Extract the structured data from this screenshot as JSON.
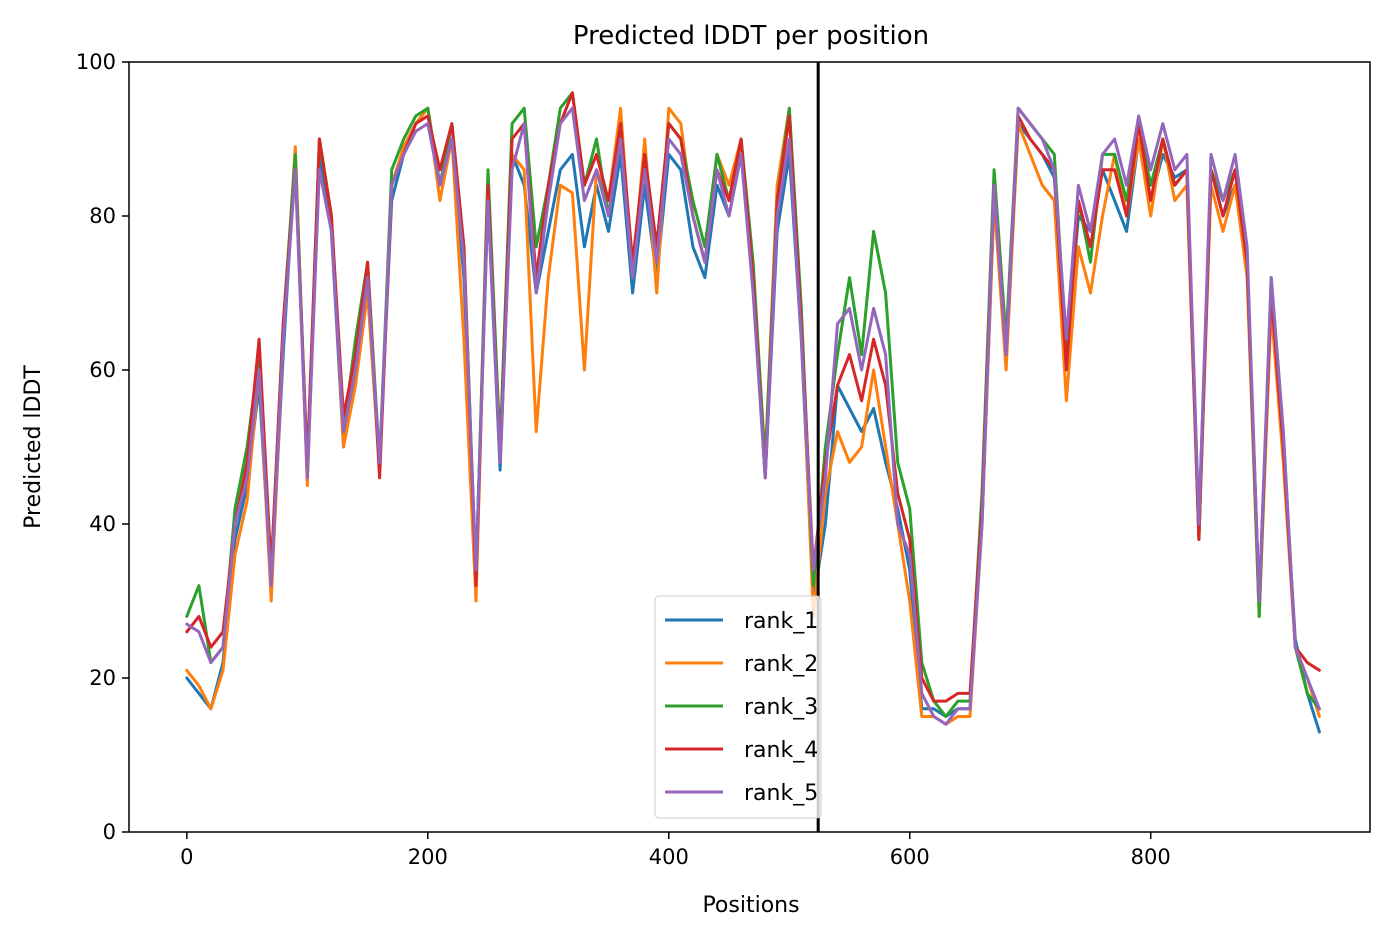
{
  "chart_data": {
    "type": "line",
    "title": "Predicted lDDT per position",
    "xlabel": "Positions",
    "ylabel": "Predicted lDDT",
    "xlim": [
      -48,
      982
    ],
    "ylim": [
      0,
      100
    ],
    "xticks": [
      0,
      200,
      400,
      600,
      800
    ],
    "yticks": [
      0,
      20,
      40,
      60,
      80,
      100
    ],
    "grid": false,
    "legend_position": "lower center",
    "chain_break": 524,
    "x": [
      0,
      10,
      20,
      30,
      40,
      50,
      60,
      70,
      80,
      90,
      100,
      110,
      120,
      130,
      140,
      150,
      160,
      170,
      180,
      190,
      200,
      210,
      220,
      230,
      240,
      250,
      260,
      270,
      280,
      290,
      300,
      310,
      320,
      330,
      340,
      350,
      360,
      370,
      380,
      390,
      400,
      410,
      420,
      430,
      440,
      450,
      460,
      470,
      480,
      490,
      500,
      510,
      520,
      530,
      540,
      550,
      560,
      570,
      580,
      590,
      600,
      610,
      620,
      630,
      640,
      650,
      660,
      670,
      680,
      690,
      700,
      710,
      720,
      730,
      740,
      750,
      760,
      770,
      780,
      790,
      800,
      810,
      820,
      830,
      840,
      850,
      860,
      870,
      880,
      890,
      900,
      910,
      920,
      930,
      940
    ],
    "series": [
      {
        "name": "rank_1",
        "color": "#1f77b4",
        "values": [
          20,
          18,
          16,
          22,
          38,
          45,
          58,
          32,
          62,
          88,
          46,
          88,
          78,
          50,
          60,
          72,
          48,
          82,
          88,
          92,
          94,
          84,
          90,
          72,
          34,
          82,
          47,
          88,
          84,
          70,
          78,
          86,
          88,
          76,
          84,
          78,
          88,
          70,
          84,
          72,
          88,
          86,
          76,
          72,
          84,
          80,
          88,
          72,
          46,
          78,
          88,
          64,
          30,
          40,
          58,
          55,
          52,
          55,
          48,
          42,
          34,
          16,
          16,
          15,
          16,
          16,
          40,
          82,
          62,
          92,
          90,
          88,
          85,
          62,
          80,
          78,
          86,
          82,
          78,
          90,
          82,
          88,
          85,
          86,
          40,
          86,
          80,
          84,
          74,
          30,
          70,
          50,
          25,
          18,
          13
        ]
      },
      {
        "name": "rank_2",
        "color": "#ff7f0e",
        "values": [
          21,
          19,
          16,
          21,
          36,
          43,
          60,
          30,
          64,
          89,
          45,
          90,
          80,
          50,
          58,
          70,
          47,
          84,
          89,
          92,
          94,
          82,
          90,
          64,
          30,
          85,
          48,
          88,
          86,
          52,
          72,
          84,
          83,
          60,
          86,
          82,
          94,
          72,
          90,
          70,
          94,
          92,
          80,
          74,
          88,
          84,
          90,
          72,
          48,
          84,
          94,
          66,
          28,
          44,
          52,
          48,
          50,
          60,
          50,
          40,
          30,
          15,
          15,
          14,
          15,
          15,
          40,
          82,
          60,
          92,
          88,
          84,
          82,
          56,
          76,
          70,
          80,
          88,
          80,
          90,
          80,
          90,
          82,
          84,
          38,
          84,
          78,
          84,
          72,
          28,
          68,
          48,
          24,
          20,
          15
        ]
      },
      {
        "name": "rank_3",
        "color": "#2ca02c",
        "values": [
          28,
          32,
          22,
          24,
          42,
          50,
          62,
          34,
          66,
          88,
          47,
          90,
          80,
          52,
          64,
          74,
          48,
          86,
          90,
          93,
          94,
          84,
          92,
          76,
          33,
          86,
          50,
          92,
          94,
          76,
          84,
          94,
          96,
          84,
          90,
          80,
          92,
          72,
          88,
          76,
          92,
          90,
          82,
          76,
          88,
          82,
          90,
          74,
          48,
          82,
          94,
          68,
          32,
          50,
          62,
          72,
          62,
          78,
          70,
          48,
          42,
          22,
          17,
          15,
          17,
          17,
          44,
          86,
          64,
          94,
          92,
          90,
          88,
          62,
          82,
          74,
          88,
          88,
          82,
          92,
          84,
          90,
          84,
          86,
          38,
          86,
          82,
          86,
          74,
          28,
          72,
          52,
          24,
          18,
          16
        ]
      },
      {
        "name": "rank_4",
        "color": "#d62728",
        "values": [
          26,
          28,
          24,
          26,
          40,
          48,
          64,
          34,
          66,
          86,
          48,
          90,
          80,
          54,
          62,
          74,
          46,
          84,
          88,
          92,
          93,
          86,
          92,
          76,
          32,
          84,
          48,
          90,
          92,
          72,
          84,
          92,
          96,
          84,
          88,
          82,
          92,
          74,
          88,
          76,
          92,
          90,
          80,
          74,
          86,
          82,
          90,
          72,
          46,
          82,
          93,
          66,
          34,
          48,
          58,
          62,
          56,
          64,
          58,
          44,
          38,
          20,
          17,
          17,
          18,
          18,
          42,
          84,
          62,
          93,
          90,
          88,
          86,
          60,
          82,
          76,
          86,
          86,
          80,
          92,
          82,
          90,
          84,
          86,
          38,
          86,
          80,
          86,
          74,
          30,
          70,
          50,
          24,
          22,
          21
        ]
      },
      {
        "name": "rank_5",
        "color": "#9467bd",
        "values": [
          27,
          26,
          22,
          24,
          40,
          46,
          60,
          32,
          64,
          86,
          46,
          86,
          78,
          52,
          60,
          72,
          48,
          84,
          88,
          91,
          92,
          84,
          90,
          74,
          34,
          82,
          48,
          86,
          92,
          70,
          82,
          92,
          94,
          82,
          86,
          80,
          90,
          72,
          86,
          74,
          90,
          88,
          80,
          74,
          86,
          80,
          88,
          70,
          46,
          80,
          90,
          64,
          34,
          46,
          66,
          68,
          60,
          68,
          62,
          40,
          36,
          18,
          15,
          14,
          16,
          16,
          40,
          84,
          62,
          94,
          92,
          90,
          86,
          64,
          84,
          78,
          88,
          90,
          84,
          93,
          86,
          92,
          86,
          88,
          40,
          88,
          82,
          88,
          76,
          30,
          72,
          52,
          24,
          20,
          16
        ]
      }
    ]
  }
}
